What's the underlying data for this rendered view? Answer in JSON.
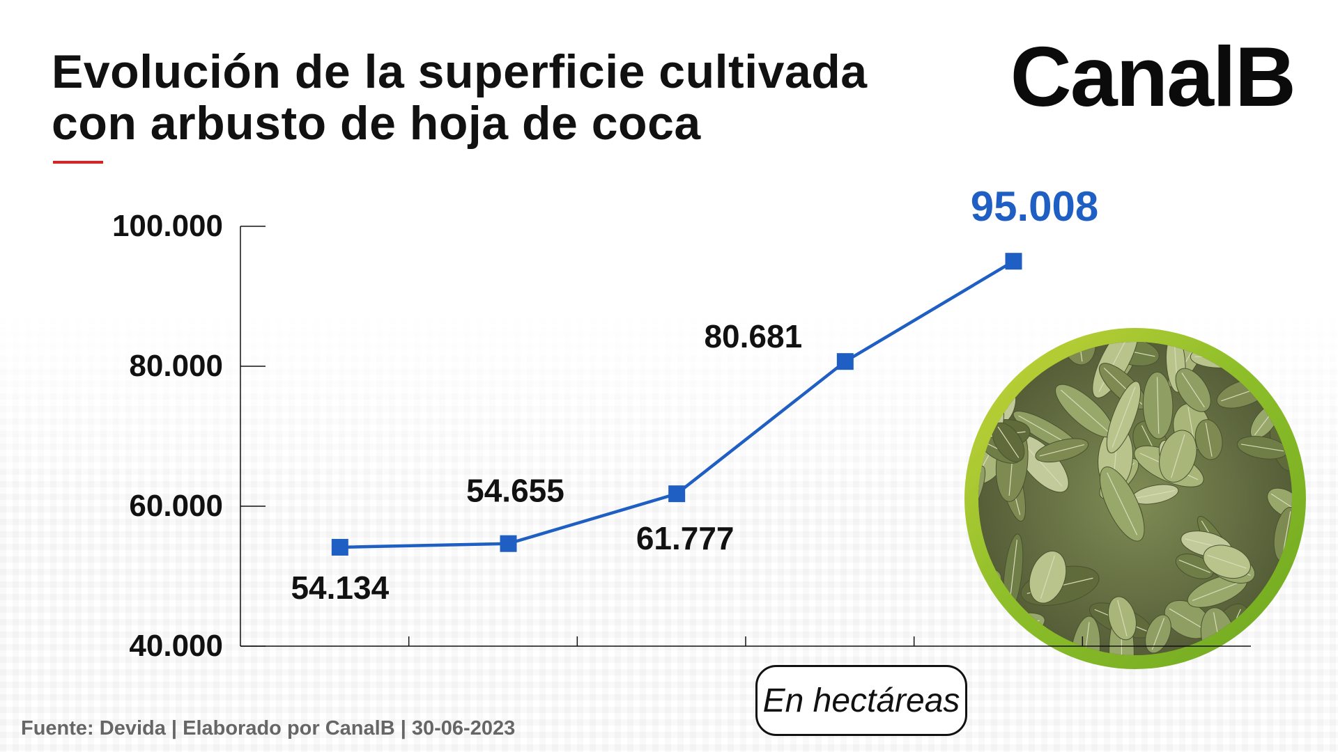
{
  "header": {
    "title_line1": "Evolución de la superficie cultivada",
    "title_line2": "con arbusto de hoja de coca",
    "brand": "CanalB"
  },
  "colors": {
    "accent": "#e02020",
    "line": "#1f5fc4",
    "highlight_label": "#1f5fc4",
    "frame_green": "#8fbf2a"
  },
  "image": {
    "subject": "coca leaves photo in a green circular frame"
  },
  "unit_label": "En hectáreas",
  "source": "Fuente: Devida | Elaborado por CanalB | 30-06-2023",
  "chart_data": {
    "type": "line",
    "title": "Evolución de la superficie cultivada con arbusto de hoja de coca",
    "xlabel": "",
    "ylabel": "",
    "categories": [
      "",
      "",
      "",
      "",
      ""
    ],
    "series": [
      {
        "values": [
          54134,
          54655,
          61777,
          80681,
          95008
        ]
      }
    ],
    "data_labels": [
      "54.134",
      "54.655",
      "61.777",
      "80.681",
      "95.008"
    ],
    "highlight_last": true,
    "y_ticks": [
      40000,
      60000,
      80000,
      100000
    ],
    "y_tick_labels": [
      "40.000",
      "60.000",
      "80.000",
      "100.000"
    ],
    "ylim": [
      40000,
      100000
    ],
    "grid": false,
    "legend": "none",
    "marker": "square"
  }
}
